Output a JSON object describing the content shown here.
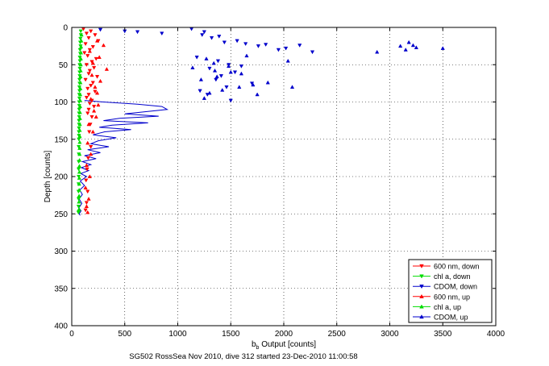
{
  "caption": "SG502 RossSea Nov 2010, dive 312 started 23-Dec-2010 11:00:58",
  "chart_data": {
    "type": "scatter",
    "xlabel": "b_b Output [counts]",
    "xlabel_main": "b",
    "xlabel_sub": "b",
    "xlabel_rest": " Output [counts]",
    "ylabel": "Depth [counts]",
    "xlim": [
      0,
      4000
    ],
    "ylim": [
      0,
      400
    ],
    "y_reversed": true,
    "x_ticks": [
      0,
      500,
      1000,
      1500,
      2000,
      2500,
      3000,
      3500,
      4000
    ],
    "y_ticks": [
      0,
      50,
      100,
      150,
      200,
      250,
      300,
      350,
      400
    ],
    "grid": "dotted",
    "legend_position": "bottom-right",
    "series": [
      {
        "name": "600 nm, down",
        "color": "#ff0000",
        "marker": "triangle-down",
        "x": [
          110,
          180,
          140,
          220,
          160,
          250,
          130,
          200,
          170,
          120,
          150,
          230,
          190,
          140,
          210,
          170,
          160,
          240,
          130,
          200,
          180,
          150,
          220,
          160,
          140,
          190,
          170,
          210,
          160,
          150,
          190,
          175,
          165,
          180,
          155,
          145,
          135,
          150,
          140,
          130
        ],
        "y": [
          2,
          5,
          8,
          10,
          14,
          18,
          22,
          26,
          30,
          34,
          38,
          42,
          46,
          50,
          54,
          58,
          62,
          66,
          70,
          74,
          78,
          82,
          86,
          90,
          94,
          98,
          102,
          106,
          110,
          115,
          120,
          130,
          140,
          160,
          175,
          190,
          205,
          220,
          235,
          245
        ]
      },
      {
        "name": "chl a, down",
        "color": "#00dd00",
        "marker": "triangle-down",
        "x": [
          85,
          86,
          82,
          80,
          83,
          78,
          80,
          76,
          77,
          75,
          76,
          74,
          75,
          73,
          74,
          72,
          73,
          71,
          72,
          70,
          71,
          70,
          69,
          70,
          68,
          69,
          68,
          67,
          68,
          67,
          66,
          67,
          66,
          65,
          66,
          65,
          64,
          65,
          64,
          63
        ],
        "y": [
          5,
          10,
          15,
          20,
          25,
          30,
          35,
          40,
          45,
          50,
          55,
          60,
          65,
          70,
          75,
          80,
          85,
          90,
          95,
          100,
          105,
          110,
          115,
          120,
          125,
          130,
          135,
          140,
          145,
          150,
          160,
          170,
          180,
          190,
          200,
          210,
          220,
          230,
          240,
          248
        ]
      },
      {
        "name": "CDOM, down",
        "color": "#0000cc",
        "marker": "triangle-down",
        "x": [
          270,
          500,
          620,
          850,
          1130,
          1230,
          1320,
          1390,
          1250,
          1440,
          1180,
          1560,
          1640,
          1760,
          1830,
          1950,
          2020,
          2150,
          2270,
          1380,
          1300,
          1480,
          1540,
          1360,
          1460,
          1600,
          1700,
          1280,
          1410,
          1210,
          1500
        ],
        "y": [
          3,
          5,
          6,
          8,
          2,
          10,
          14,
          12,
          6,
          20,
          40,
          18,
          22,
          25,
          23,
          30,
          28,
          24,
          33,
          45,
          55,
          50,
          60,
          70,
          80,
          52,
          75,
          90,
          65,
          85,
          98
        ]
      },
      {
        "name": "600 nm, up",
        "color": "#ff0000",
        "marker": "triangle-up",
        "x": [
          240,
          300,
          170,
          260,
          200,
          330,
          190,
          270,
          220,
          240,
          180,
          250,
          210,
          230,
          160,
          200,
          150,
          180,
          140,
          170,
          130,
          160,
          140,
          150
        ],
        "y": [
          18,
          24,
          32,
          40,
          48,
          56,
          64,
          72,
          80,
          88,
          96,
          104,
          112,
          120,
          130,
          140,
          155,
          170,
          185,
          200,
          215,
          230,
          240,
          248
        ]
      },
      {
        "name": "chl a, up",
        "color": "#00dd00",
        "marker": "triangle-up",
        "x": [
          92,
          90,
          88,
          87,
          86,
          85,
          84,
          83,
          82,
          81,
          80,
          80,
          79,
          78,
          78,
          77,
          76,
          76,
          75,
          74,
          74,
          73,
          72,
          72,
          71,
          70,
          70,
          69,
          68,
          68
        ],
        "y": [
          10,
          18,
          26,
          34,
          42,
          50,
          58,
          66,
          74,
          82,
          90,
          98,
          106,
          114,
          122,
          130,
          138,
          146,
          154,
          162,
          170,
          178,
          186,
          194,
          202,
          210,
          218,
          226,
          234,
          244
        ]
      },
      {
        "name": "CDOM, up",
        "color": "#0000cc",
        "marker": "triangle-up",
        "x": [
          3220,
          3250,
          3150,
          3100,
          3500,
          3180,
          2880,
          1270,
          1340,
          1480,
          1140,
          1600,
          1370,
          1220,
          1850,
          1710,
          1580,
          1420,
          1300,
          2040,
          1650,
          1350,
          1750,
          1500,
          2080,
          1250
        ],
        "y": [
          24,
          27,
          30,
          25,
          28,
          20,
          33,
          42,
          48,
          52,
          54,
          62,
          66,
          70,
          74,
          77,
          80,
          84,
          88,
          45,
          38,
          58,
          90,
          60,
          80,
          95
        ]
      },
      {
        "name": "CDOM, profile",
        "color": "#0000cc",
        "marker": "line",
        "x": [
          120,
          300,
          620,
          850,
          900,
          700,
          500,
          820,
          450,
          300,
          720,
          380,
          260,
          560,
          310,
          200,
          420,
          250,
          180,
          350,
          150,
          270,
          120,
          230,
          100,
          180,
          90,
          160,
          85,
          140,
          80,
          120,
          75,
          100,
          70,
          95,
          68,
          88,
          70,
          80
        ],
        "y": [
          98,
          100,
          103,
          106,
          110,
          113,
          116,
          119,
          122,
          125,
          128,
          131,
          134,
          137,
          140,
          144,
          148,
          152,
          156,
          160,
          164,
          168,
          172,
          176,
          180,
          184,
          188,
          192,
          196,
          200,
          206,
          212,
          218,
          224,
          230,
          236,
          242,
          246,
          250,
          252
        ]
      }
    ]
  }
}
